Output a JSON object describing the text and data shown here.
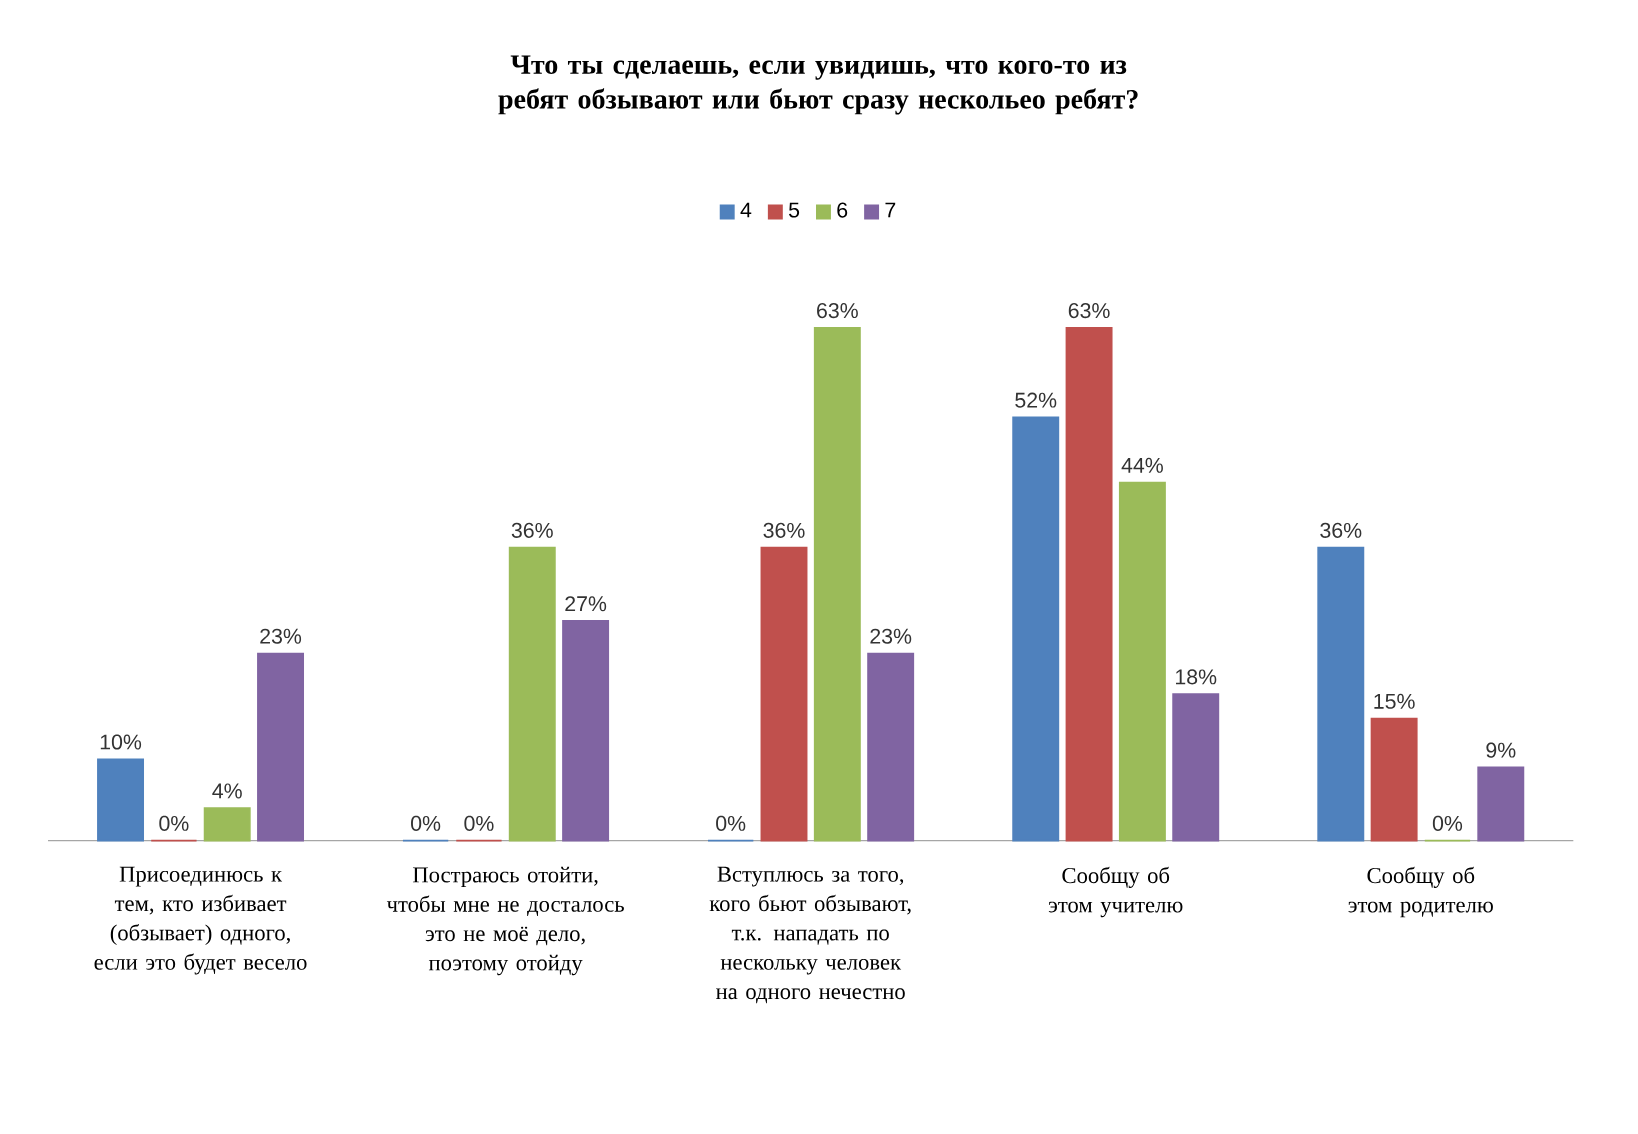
{
  "chart_data": {
    "type": "bar",
    "title": "Что ты сделаешь, если увидишь, что кого-то из ребят обзывают или бьют сразу нескольео ребят?",
    "categories": [
      "Присоединюсь к тем, кто избивает (обзывает) одного, если это будет весело",
      "Постраюсь отойти, чтобы мне не досталось это не моё дело, поэтому отойду",
      "Вступлюсь за того, кого бьют обзывают, т.к. нападать по нескольку человек на одного нечестно",
      "Сообщу об этом учителю",
      "Сообщу об этом родителю"
    ],
    "series": [
      {
        "name": "4",
        "color": "#4f81bd",
        "values": [
          10,
          0,
          0,
          52,
          36
        ],
        "value_labels": [
          "10%",
          "0%",
          "0%",
          "52%",
          "36%"
        ]
      },
      {
        "name": "5",
        "color": "#c0504d",
        "values": [
          0,
          0,
          36,
          63,
          15
        ],
        "value_labels": [
          "0%",
          "0%",
          "36%",
          "63%",
          "15%"
        ]
      },
      {
        "name": "6",
        "color": "#9bbb59",
        "values": [
          4,
          36,
          63,
          44,
          0
        ],
        "value_labels": [
          "4%",
          "36%",
          "63%",
          "44%",
          "0%"
        ]
      },
      {
        "name": "7",
        "color": "#8064a2",
        "values": [
          23,
          27,
          23,
          18,
          9
        ],
        "value_labels": [
          "23%",
          "27%",
          "23%",
          "18%",
          "9%"
        ]
      }
    ],
    "tick_labels": "x",
    "legend": "top"
  }
}
